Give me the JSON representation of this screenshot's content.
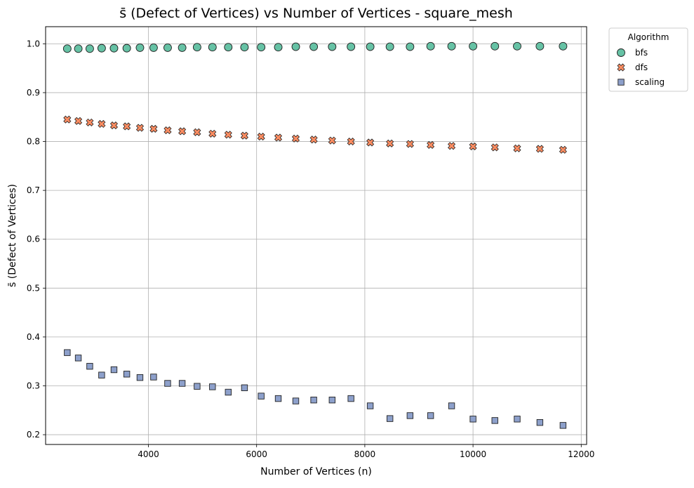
{
  "chart_data": {
    "type": "scatter",
    "title": "s̄ (Defect of Vertices) vs Number of Vertices - square_mesh",
    "xlabel": "Number of Vertices (n)",
    "ylabel": "s̄ (Defect of Vertices)",
    "xlim": [
      2100,
      12100
    ],
    "ylim": [
      0.18,
      1.035
    ],
    "xticks": [
      4000,
      6000,
      8000,
      10000,
      12000
    ],
    "yticks": [
      0.2,
      0.3,
      0.4,
      0.5,
      0.6,
      0.7,
      0.8,
      0.9,
      1.0
    ],
    "grid": true,
    "legend": {
      "title": "Algorithm",
      "placement": "outside-top-right"
    },
    "series": [
      {
        "name": "bfs",
        "marker": "circle",
        "color": "#66c2a5",
        "x": [
          2500,
          2704,
          2916,
          3136,
          3364,
          3600,
          3844,
          4096,
          4356,
          4624,
          4900,
          5184,
          5476,
          5776,
          6084,
          6400,
          6724,
          7056,
          7396,
          7744,
          8100,
          8464,
          8836,
          9216,
          9604,
          10000,
          10404,
          10816,
          11236,
          11664
        ],
        "y": [
          0.99,
          0.99,
          0.99,
          0.991,
          0.991,
          0.991,
          0.992,
          0.992,
          0.992,
          0.992,
          0.993,
          0.993,
          0.993,
          0.993,
          0.993,
          0.993,
          0.994,
          0.994,
          0.994,
          0.994,
          0.994,
          0.994,
          0.994,
          0.995,
          0.995,
          0.995,
          0.995,
          0.995,
          0.995,
          0.995
        ]
      },
      {
        "name": "dfs",
        "marker": "x",
        "color": "#fc8d62",
        "x": [
          2500,
          2704,
          2916,
          3136,
          3364,
          3600,
          3844,
          4096,
          4356,
          4624,
          4900,
          5184,
          5476,
          5776,
          6084,
          6400,
          6724,
          7056,
          7396,
          7744,
          8100,
          8464,
          8836,
          9216,
          9604,
          10000,
          10404,
          10816,
          11236,
          11664
        ],
        "y": [
          0.845,
          0.842,
          0.839,
          0.836,
          0.833,
          0.831,
          0.828,
          0.826,
          0.823,
          0.821,
          0.819,
          0.816,
          0.814,
          0.812,
          0.81,
          0.808,
          0.806,
          0.804,
          0.802,
          0.8,
          0.798,
          0.796,
          0.795,
          0.793,
          0.791,
          0.79,
          0.788,
          0.786,
          0.785,
          0.783
        ]
      },
      {
        "name": "scaling",
        "marker": "square",
        "color": "#8da0cb",
        "x": [
          2500,
          2704,
          2916,
          3136,
          3364,
          3600,
          3844,
          4096,
          4356,
          4624,
          4900,
          5184,
          5476,
          5776,
          6084,
          6400,
          6724,
          7056,
          7396,
          7744,
          8100,
          8464,
          8836,
          9216,
          9604,
          10000,
          10404,
          10816,
          11236,
          11664
        ],
        "y": [
          0.368,
          0.357,
          0.34,
          0.322,
          0.333,
          0.324,
          0.317,
          0.318,
          0.305,
          0.305,
          0.299,
          0.298,
          0.287,
          0.296,
          0.279,
          0.274,
          0.269,
          0.271,
          0.271,
          0.274,
          0.259,
          0.233,
          0.239,
          0.239,
          0.259,
          0.232,
          0.229,
          0.232,
          0.225,
          0.219
        ]
      }
    ]
  }
}
